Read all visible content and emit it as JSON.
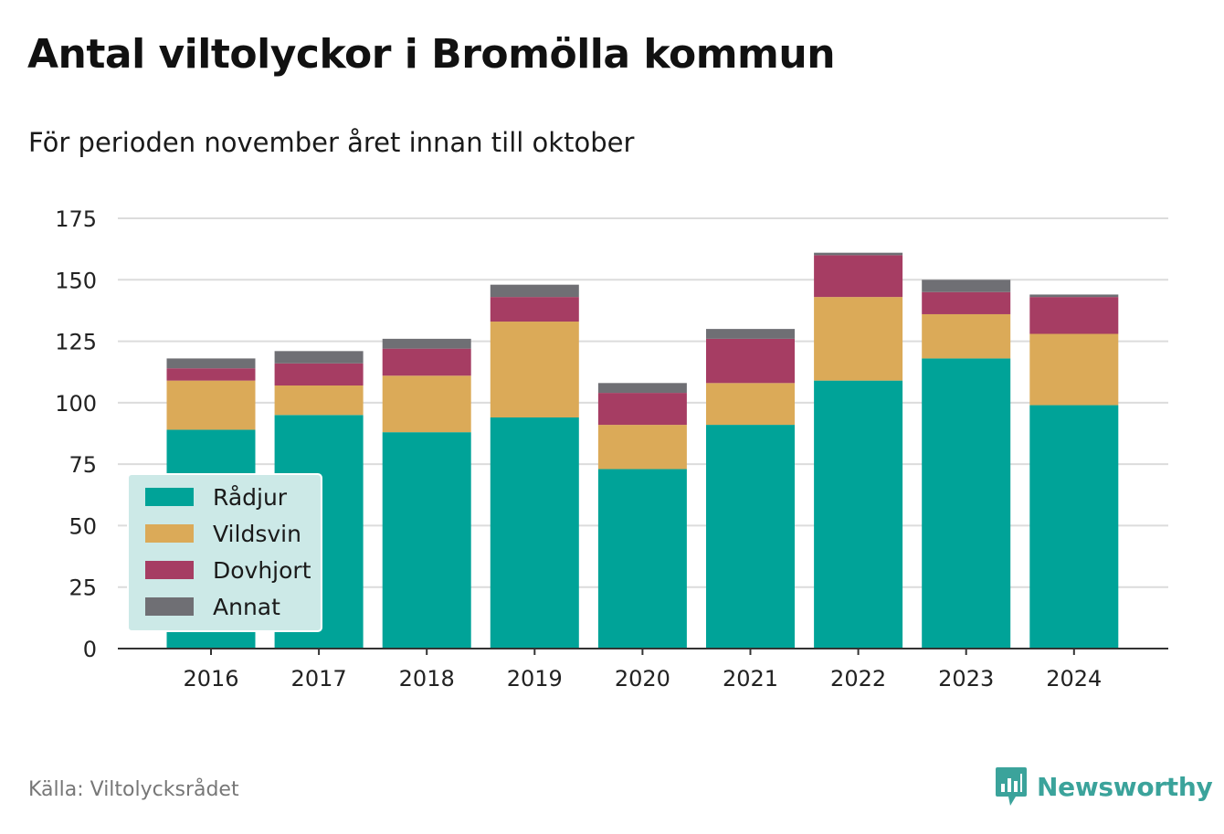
{
  "title": "Antal viltolyckor i Bromölla kommun",
  "subtitle": "För perioden november året innan till oktober",
  "source": "Källa: Viltolycksrådet",
  "brand": {
    "name": "Newsworthy",
    "icon": "newsworthy-logo-icon",
    "color": "#3ba39b"
  },
  "chart_data": {
    "type": "bar",
    "stacked": true,
    "categories": [
      "2016",
      "2017",
      "2018",
      "2019",
      "2020",
      "2021",
      "2022",
      "2023",
      "2024"
    ],
    "series": [
      {
        "name": "Rådjur",
        "color": "#00a398",
        "values": [
          89,
          95,
          88,
          94,
          73,
          91,
          109,
          118,
          99
        ]
      },
      {
        "name": "Vildsvin",
        "color": "#dbaa58",
        "values": [
          20,
          12,
          23,
          39,
          18,
          17,
          34,
          18,
          29
        ]
      },
      {
        "name": "Dovhjort",
        "color": "#a63d63",
        "values": [
          5,
          9,
          11,
          10,
          13,
          18,
          17,
          9,
          15
        ]
      },
      {
        "name": "Annat",
        "color": "#6f6f74",
        "values": [
          4,
          5,
          4,
          5,
          4,
          4,
          1,
          5,
          1
        ]
      }
    ],
    "ylim": [
      0,
      175
    ],
    "yticks": [
      0,
      25,
      50,
      75,
      100,
      125,
      150,
      175
    ],
    "grid": true,
    "legend": "bottom-left"
  }
}
